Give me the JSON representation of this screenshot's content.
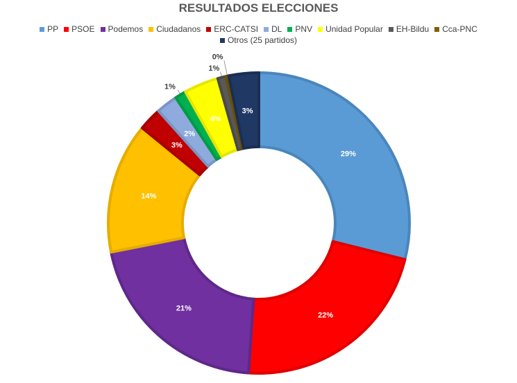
{
  "chart_data": {
    "type": "pie",
    "variant": "donut",
    "title": "RESULTADOS ELECCIONES",
    "legend_position": "top",
    "start_angle": "top, clockwise",
    "unit": "%",
    "categories": [
      "PP",
      "PSOE",
      "Podemos",
      "Ciudadanos",
      "ERC-CATSI",
      "DL",
      "PNV",
      "Unidad Popular",
      "EH-Bildu",
      "Cca-PNC",
      "Otros (25 partidos)"
    ],
    "values": [
      28.9,
      22.2,
      20.8,
      14.0,
      2.5,
      2.3,
      1.2,
      3.7,
      0.9,
      0.3,
      3.2
    ],
    "data_labels": [
      "29%",
      "22%",
      "21%",
      "14%",
      "3%",
      "2%",
      "1%",
      "4%",
      "1%",
      "0%",
      "3%"
    ],
    "colors": [
      "#5b9bd5",
      "#ff0000",
      "#7030a0",
      "#ffc000",
      "#c00000",
      "#8faadc",
      "#00b050",
      "#ffff00",
      "#595959",
      "#7f6000",
      "#203864"
    ],
    "border_colors": [
      "#4a86bd",
      "#e00000",
      "#5e2888",
      "#e6ad00",
      "#a80000",
      "#7a95c6",
      "#009a45",
      "#e6e600",
      "#4a4a4a",
      "#6a5000",
      "#1a2e52"
    ]
  }
}
